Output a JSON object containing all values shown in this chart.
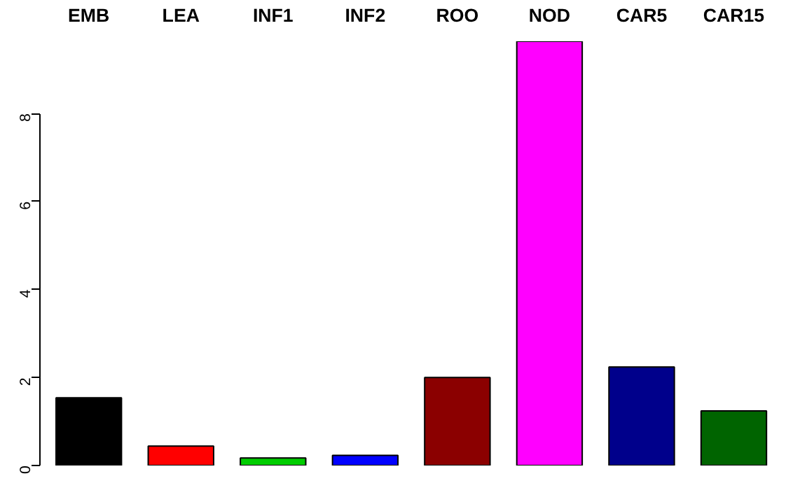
{
  "chart_data": {
    "type": "bar",
    "categories": [
      "EMB",
      "LEA",
      "INF1",
      "INF2",
      "ROO",
      "NOD",
      "CAR5",
      "CAR15"
    ],
    "values": [
      1.54,
      0.44,
      0.17,
      0.23,
      2.0,
      9.64,
      2.24,
      1.24
    ],
    "colors": [
      "#000000",
      "#ff0000",
      "#00cd00",
      "#0000ff",
      "#8b0000",
      "#ff00ff",
      "#00008b",
      "#006400"
    ],
    "ylim": [
      0,
      9.64
    ],
    "yticks": [
      0,
      2,
      4,
      6,
      8
    ]
  }
}
